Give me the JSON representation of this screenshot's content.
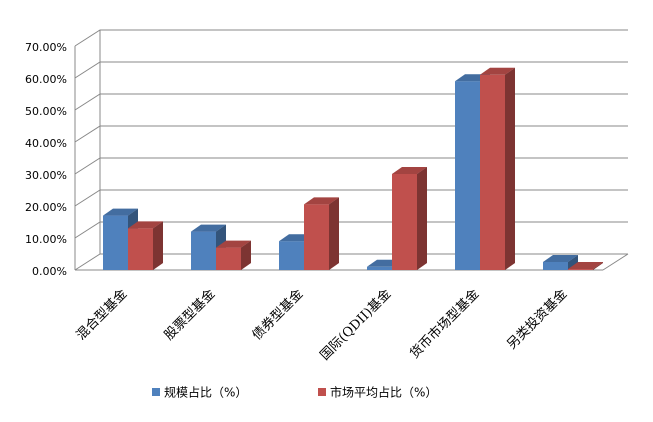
{
  "chart_data": {
    "type": "bar3d",
    "categories": [
      "混合型基金",
      "股票型基金",
      "债券型基金",
      "国际(QDII)基金",
      "货币市场型基金",
      "另类投资基金"
    ],
    "series": [
      {
        "name": "规模占比（%）",
        "color": "#4f81bd",
        "values": [
          17,
          12,
          9,
          1,
          59,
          2.5
        ]
      },
      {
        "name": "市场平均占比（%）",
        "color": "#c0504d",
        "values": [
          13,
          7,
          20.5,
          30,
          61,
          0.3
        ]
      }
    ],
    "ylim": [
      0,
      70
    ],
    "yticks": [
      {
        "value": 0,
        "label": "0.00%"
      },
      {
        "value": 10,
        "label": "10.00%"
      },
      {
        "value": 20,
        "label": "20.00%"
      },
      {
        "value": 30,
        "label": "30.00%"
      },
      {
        "value": 40,
        "label": "40.00%"
      },
      {
        "value": 50,
        "label": "50.00%"
      },
      {
        "value": 60,
        "label": "60.00%"
      },
      {
        "value": 70,
        "label": "70.00%"
      }
    ],
    "grid": true,
    "legend": "bottom"
  }
}
